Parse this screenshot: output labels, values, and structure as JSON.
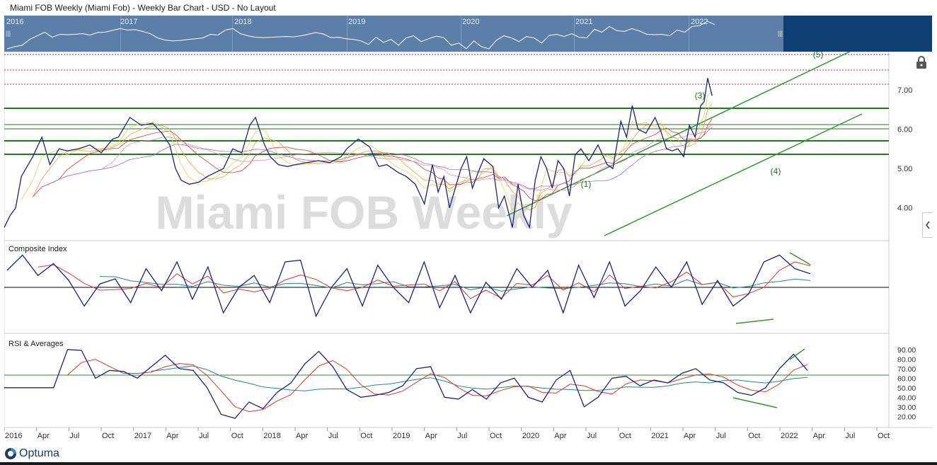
{
  "header": {
    "title": "Miami FOB Weekly (Miami Fob) - Weekly Bar Chart - USD - No Layout"
  },
  "navigator": {
    "years": [
      "2016",
      "2017",
      "2018",
      "2019",
      "2020",
      "2021",
      "2022"
    ]
  },
  "watermark": "Miami FOB Weekly",
  "brand": {
    "name": "Optuma"
  },
  "colors": {
    "price": "#1a237e",
    "support": "#2e8b2e",
    "dotted": "#cc2222",
    "ma_red": "#e0392b",
    "ma_teal": "#1f8a8a",
    "ma_yellow": "#d8d84a",
    "ma_orange": "#f0a040",
    "ma_purple": "#a070c0",
    "ma_pink": "#e890b0"
  },
  "icons": {
    "lock": "lock-icon",
    "collapse": "chevron-left-icon"
  },
  "chart_data": [
    {
      "type": "line",
      "title": "Miami FOB Weekly",
      "x_axis": {
        "labels": [
          "2016",
          "Apr",
          "Jul",
          "Oct",
          "2017",
          "Apr",
          "Jul",
          "Oct",
          "2018",
          "Apr",
          "Jul",
          "Oct",
          "2019",
          "Apr",
          "Jul",
          "Oct",
          "2020",
          "Apr",
          "Jul",
          "Oct",
          "2021",
          "Apr",
          "Jul",
          "Oct",
          "2022",
          "Apr",
          "Jul",
          "Oct"
        ]
      },
      "y_ticks": [
        "7.00",
        "6.00",
        "5.00",
        "4.00"
      ],
      "ylim": [
        3.4,
        7.9
      ],
      "x": [
        2016.0,
        2016.05,
        2016.1,
        2016.15,
        2016.25,
        2016.33,
        2016.4,
        2016.48,
        2016.55,
        2016.65,
        2016.75,
        2016.85,
        2016.95,
        2017.0,
        2017.05,
        2017.1,
        2017.2,
        2017.3,
        2017.38,
        2017.45,
        2017.5,
        2017.55,
        2017.62,
        2017.7,
        2017.78,
        2017.85,
        2017.92,
        2018.0,
        2018.08,
        2018.15,
        2018.2,
        2018.28,
        2018.33,
        2018.4,
        2018.48,
        2018.55,
        2018.65,
        2018.75,
        2018.85,
        2018.95,
        2019.0,
        2019.1,
        2019.2,
        2019.28,
        2019.35,
        2019.45,
        2019.52,
        2019.6,
        2019.68,
        2019.75,
        2019.8,
        2019.85,
        2019.9,
        2020.0,
        2020.05,
        2020.1,
        2020.15,
        2020.2,
        2020.28,
        2020.33,
        2020.38,
        2020.45,
        2020.5,
        2020.55,
        2020.6,
        2020.65,
        2020.7,
        2020.75,
        2020.8,
        2020.85,
        2020.9,
        2020.95,
        2021.0,
        2021.05,
        2021.12,
        2021.2,
        2021.28,
        2021.33,
        2021.4,
        2021.45,
        2021.5,
        2021.55,
        2021.62,
        2021.7,
        2021.75,
        2021.8,
        2021.85,
        2021.9,
        2021.95,
        2022.0,
        2022.05,
        2022.1,
        2022.13,
        2022.16,
        2022.2
      ],
      "series": [
        {
          "name": "",
          "values": [
            3.5,
            3.8,
            4.0,
            4.8,
            5.3,
            5.8,
            5.1,
            5.5,
            5.45,
            5.5,
            5.6,
            5.4,
            5.75,
            5.8,
            6.05,
            6.3,
            6.1,
            6.15,
            5.9,
            5.6,
            5.0,
            4.7,
            4.6,
            4.65,
            4.8,
            4.9,
            5.0,
            5.5,
            5.4,
            6.1,
            6.3,
            5.6,
            5.3,
            5.1,
            5.05,
            5.1,
            5.15,
            5.2,
            5.15,
            5.3,
            5.5,
            5.75,
            5.55,
            5.05,
            5.1,
            4.9,
            4.8,
            4.6,
            4.1,
            5.1,
            4.4,
            4.8,
            4.0,
            5.0,
            5.3,
            4.5,
            4.9,
            5.25,
            5.05,
            4.0,
            4.3,
            3.5,
            4.6,
            3.8,
            3.5,
            4.7,
            5.3,
            5.0,
            4.5,
            5.2,
            5.0,
            4.3,
            5.35,
            5.5,
            5.2,
            5.6,
            5.1,
            5.0,
            6.2,
            5.8,
            6.6,
            6.0,
            5.9,
            6.3,
            5.95,
            5.5,
            5.45,
            5.5,
            5.3,
            6.1,
            5.8,
            6.6,
            6.7,
            7.3,
            6.85
          ]
        }
      ],
      "annotations": [
        "(1)",
        "(3)",
        "(4)",
        "(5)"
      ]
    },
    {
      "type": "line",
      "title": "Composite Index",
      "series": [
        {
          "name": "",
          "values": [
            0.5,
            0.95,
            0.35,
            0.7,
            0.2,
            -0.55,
            0.1,
            0.25,
            -0.45,
            0.55,
            -0.1,
            0.75,
            -0.35,
            0.6,
            -0.75,
            0.0,
            0.35,
            -0.45,
            0.75,
            0.8,
            -0.85,
            0.0,
            0.55,
            -0.55,
            0.65,
            0.0,
            -0.45,
            0.75,
            -0.6,
            0.35,
            -0.75,
            0.15,
            -0.35,
            0.55,
            0.0,
            0.5,
            -0.75,
            0.65,
            -0.3,
            0.75,
            -0.55,
            -0.1,
            0.6,
            0.0,
            0.75,
            -0.5,
            0.2,
            -0.55,
            -0.2,
            0.75,
            0.95,
            0.55,
            0.4
          ]
        }
      ]
    },
    {
      "type": "line",
      "title": "RSI & Averages",
      "y_ticks": [
        "90.00",
        "80.00",
        "70.00",
        "60.00",
        "50.00",
        "40.00",
        "30.00",
        "20.00"
      ],
      "ylim": [
        15,
        95
      ],
      "series": [
        {
          "name": "",
          "values": [
            50,
            50,
            90,
            89,
            60,
            68,
            67,
            60,
            72,
            84,
            70,
            68,
            50,
            22,
            18,
            35,
            28,
            45,
            55,
            75,
            88,
            72,
            48,
            40,
            42,
            45,
            52,
            70,
            72,
            40,
            38,
            48,
            38,
            55,
            60,
            40,
            35,
            58,
            68,
            30,
            40,
            60,
            62,
            52,
            58,
            55,
            65,
            70,
            58,
            55,
            45,
            42,
            50,
            70,
            85,
            68
          ]
        }
      ]
    }
  ]
}
